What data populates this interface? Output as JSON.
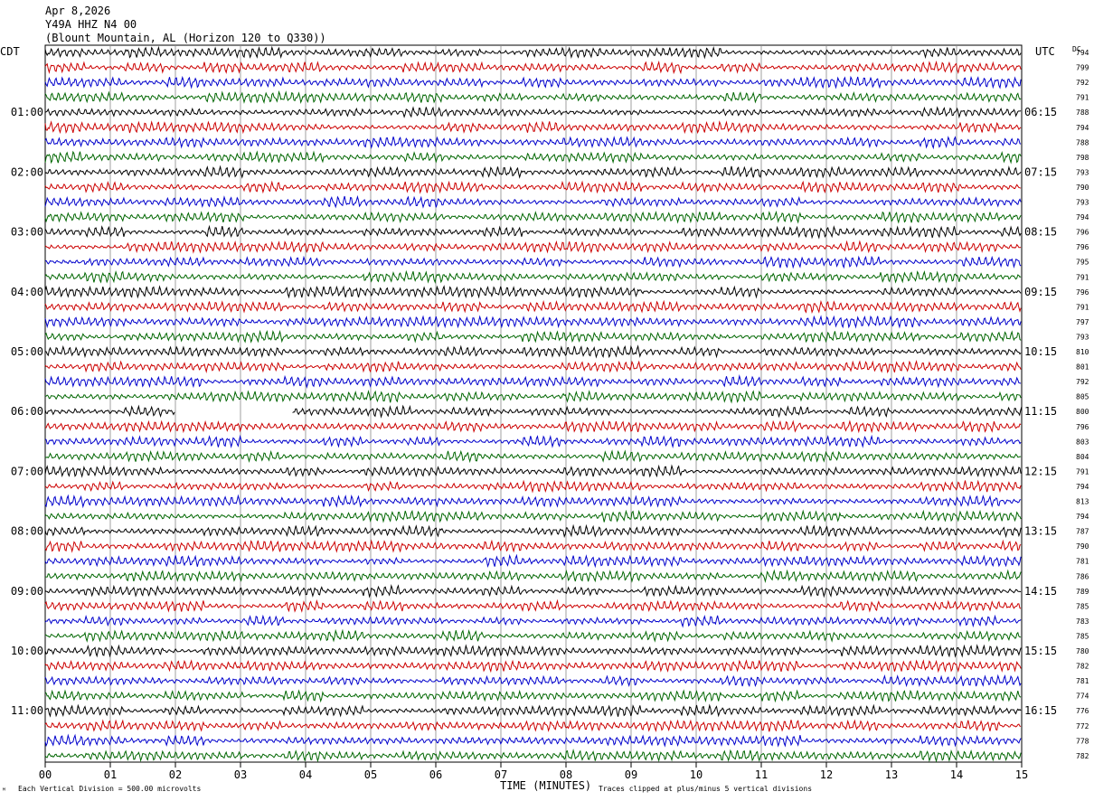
{
  "header": {
    "date": "Apr 8,2026",
    "station": "Y49A HHZ N4 00",
    "location": "(Blount Mountain, AL (Horizon 120 to Q330))"
  },
  "axis": {
    "left_title": "CDT",
    "right_title": "UTC",
    "dc_title": "DC",
    "x_ticks": [
      "00",
      "01",
      "02",
      "03",
      "04",
      "05",
      "06",
      "07",
      "08",
      "09",
      "10",
      "11",
      "12",
      "13",
      "14",
      "15"
    ],
    "xlabel": "TIME (MINUTES)",
    "scale_note": "Each Vertical Division =  500.00 microvolts",
    "clip_note": "Traces clipped at plus/minus 5 vertical divisions"
  },
  "chart_data": {
    "type": "line",
    "title": "Y49A HHZ N4 00",
    "xlabel": "TIME (MINUTES)",
    "xlim": [
      0,
      15
    ],
    "rows_per_hour": 4,
    "minutes_per_row": 15,
    "left_hour_labels": [
      "01:00",
      "02:00",
      "03:00",
      "04:00",
      "05:00",
      "06:00",
      "07:00",
      "08:00",
      "09:00",
      "10:00",
      "11:00"
    ],
    "right_hour_labels": [
      "06:15",
      "07:15",
      "08:15",
      "09:15",
      "10:15",
      "11:15",
      "12:15",
      "13:15",
      "14:15",
      "15:15",
      "16:15"
    ],
    "trace_colors": [
      "#000000",
      "#cc0000",
      "#0000cc",
      "#006600"
    ],
    "dc_offsets": [
      794,
      799,
      792,
      791,
      788,
      794,
      788,
      798,
      793,
      790,
      793,
      794,
      796,
      796,
      795,
      791,
      796,
      791,
      797,
      793,
      810,
      801,
      792,
      805,
      800,
      796,
      803,
      804,
      791,
      794,
      813,
      794,
      787,
      790,
      781,
      786,
      789,
      785,
      783,
      785,
      780,
      782,
      781,
      774,
      776,
      772,
      778,
      782
    ],
    "data_gaps": [
      {
        "row": 24,
        "start_min": 2.0,
        "end_min": 3.8
      }
    ]
  }
}
